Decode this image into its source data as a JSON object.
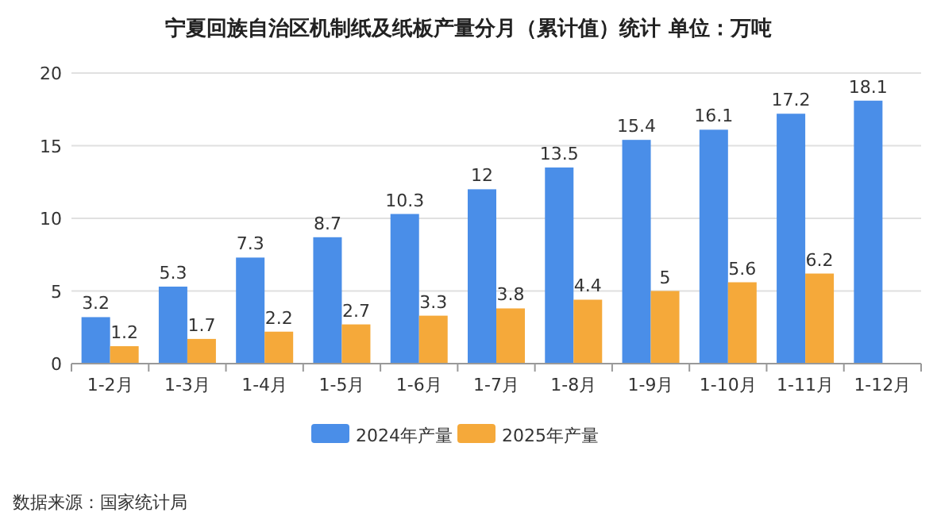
{
  "chart_data": {
    "type": "bar",
    "title": "宁夏回族自治区机制纸及纸板产量分月（累计值）统计  单位：万吨",
    "categories": [
      "1-2月",
      "1-3月",
      "1-4月",
      "1-5月",
      "1-6月",
      "1-7月",
      "1-8月",
      "1-9月",
      "1-10月",
      "1-11月",
      "1-12月"
    ],
    "series": [
      {
        "name": "2024年产量",
        "color": "#4a8ee8",
        "values": [
          3.2,
          5.3,
          7.3,
          8.7,
          10.3,
          12,
          13.5,
          15.4,
          16.1,
          17.2,
          18.1
        ]
      },
      {
        "name": "2025年产量",
        "color": "#f5a93a",
        "values": [
          1.2,
          1.7,
          2.2,
          2.7,
          3.3,
          3.8,
          4.4,
          5,
          5.6,
          6.2,
          null
        ]
      }
    ],
    "ylim": [
      0,
      20
    ],
    "yticks": [
      0,
      5,
      10,
      15,
      20
    ],
    "grid": "y",
    "legend": "bottom",
    "data_labels": true,
    "annotations": [
      "数据来源：国家统计局"
    ]
  }
}
